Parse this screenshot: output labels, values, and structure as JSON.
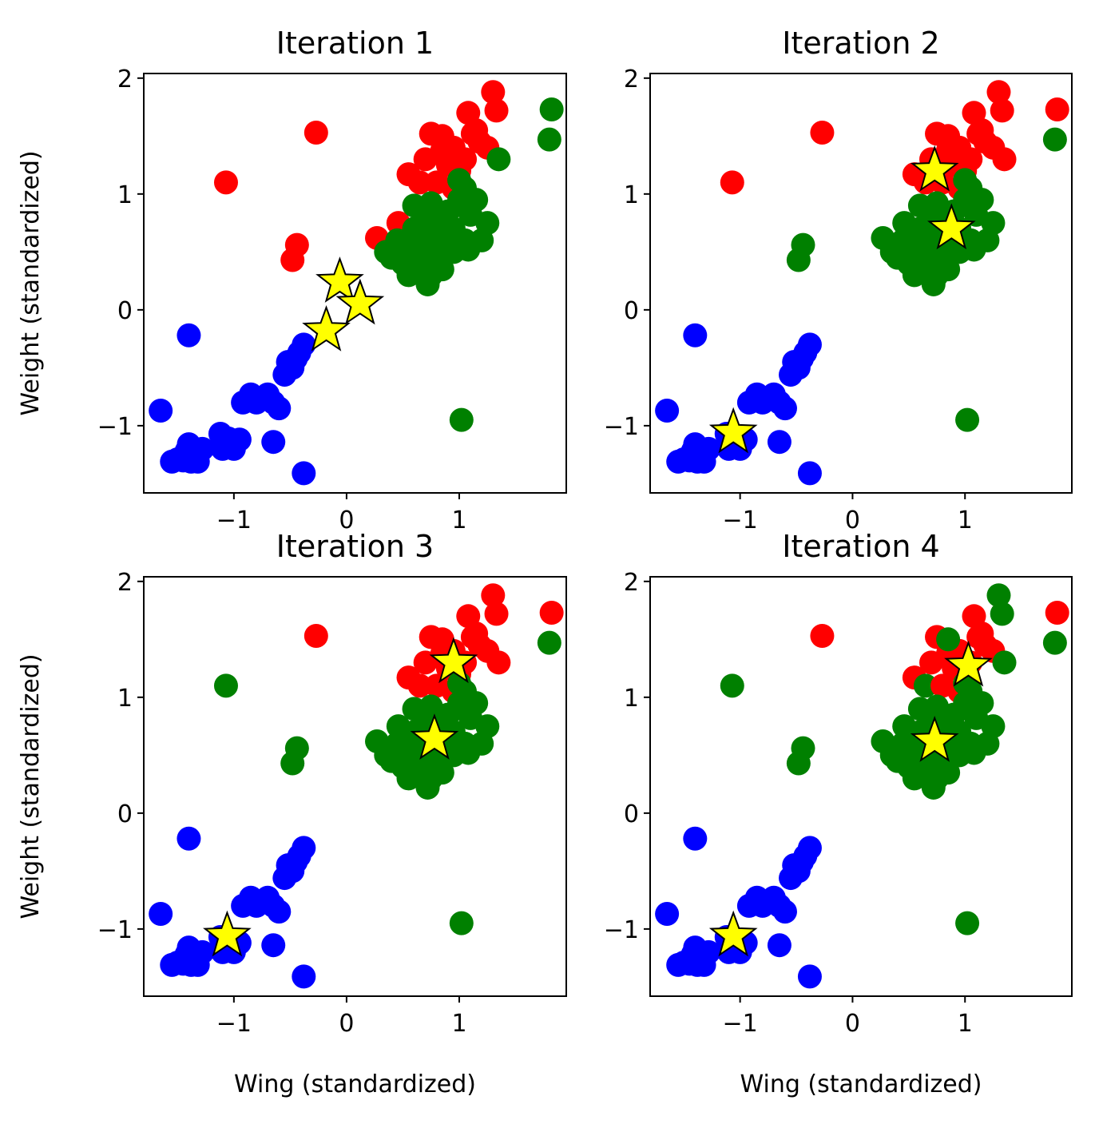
{
  "chart_data": {
    "type": "scatter",
    "grid": false,
    "shared_xlim": [
      -1.8,
      1.95
    ],
    "shared_ylim": [
      -1.58,
      2.04
    ],
    "x_ticks": [
      -1,
      0,
      1
    ],
    "y_ticks": [
      -1,
      0,
      1,
      2
    ],
    "xlabel": "Wing (standardized)",
    "ylabel": "Weight (standardized)",
    "cluster_colors": [
      "#ff0000",
      "#008000",
      "#0000ff"
    ],
    "centroid_color": "#ffff00",
    "points": [
      [
        -1.65,
        -0.87
      ],
      [
        -1.55,
        -1.31
      ],
      [
        -1.5,
        -1.29
      ],
      [
        -1.45,
        -1.3
      ],
      [
        -1.42,
        -1.22
      ],
      [
        -1.4,
        -1.16
      ],
      [
        -1.38,
        -1.31
      ],
      [
        -1.35,
        -1.27
      ],
      [
        -1.32,
        -1.31
      ],
      [
        -1.28,
        -1.2
      ],
      [
        -1.4,
        -0.22
      ],
      [
        -1.12,
        -1.07
      ],
      [
        -1.05,
        -1.11
      ],
      [
        -1.0,
        -1.15
      ],
      [
        -0.95,
        -1.12
      ],
      [
        -1.1,
        -1.2
      ],
      [
        -1.0,
        -1.2
      ],
      [
        -0.92,
        -0.8
      ],
      [
        -0.85,
        -0.73
      ],
      [
        -0.8,
        -0.8
      ],
      [
        -0.75,
        -0.77
      ],
      [
        -0.7,
        -0.73
      ],
      [
        -0.65,
        -0.8
      ],
      [
        -0.6,
        -0.85
      ],
      [
        -0.65,
        -1.14
      ],
      [
        -0.55,
        -0.56
      ],
      [
        -0.52,
        -0.45
      ],
      [
        -0.48,
        -0.5
      ],
      [
        -0.45,
        -0.42
      ],
      [
        -0.42,
        -0.37
      ],
      [
        -0.38,
        -0.3
      ],
      [
        -0.38,
        -1.41
      ],
      [
        -1.07,
        1.1
      ],
      [
        -0.27,
        1.53
      ],
      [
        -0.48,
        0.43
      ],
      [
        -0.44,
        0.56
      ],
      [
        0.27,
        0.62
      ],
      [
        0.46,
        0.75
      ],
      [
        0.55,
        1.17
      ],
      [
        0.7,
        1.3
      ],
      [
        0.75,
        1.52
      ],
      [
        0.85,
        1.38
      ],
      [
        0.9,
        1.25
      ],
      [
        0.95,
        1.4
      ],
      [
        1.0,
        1.2
      ],
      [
        1.05,
        1.3
      ],
      [
        1.08,
        1.7
      ],
      [
        1.12,
        1.52
      ],
      [
        1.18,
        1.45
      ],
      [
        1.25,
        1.4
      ],
      [
        1.3,
        1.88
      ],
      [
        1.33,
        1.72
      ],
      [
        0.65,
        1.1
      ],
      [
        0.8,
        1.1
      ],
      [
        0.95,
        1.05
      ],
      [
        1.15,
        1.55
      ],
      [
        0.85,
        1.5
      ],
      [
        1.35,
        1.3
      ],
      [
        0.35,
        0.5
      ],
      [
        0.4,
        0.45
      ],
      [
        0.45,
        0.6
      ],
      [
        0.5,
        0.4
      ],
      [
        0.55,
        0.55
      ],
      [
        0.6,
        0.5
      ],
      [
        0.6,
        0.7
      ],
      [
        0.65,
        0.35
      ],
      [
        0.65,
        0.6
      ],
      [
        0.7,
        0.8
      ],
      [
        0.7,
        0.45
      ],
      [
        0.72,
        0.22
      ],
      [
        0.75,
        0.65
      ],
      [
        0.75,
        0.92
      ],
      [
        0.8,
        0.5
      ],
      [
        0.8,
        0.75
      ],
      [
        0.85,
        0.6
      ],
      [
        0.85,
        0.35
      ],
      [
        0.9,
        0.85
      ],
      [
        0.95,
        0.7
      ],
      [
        0.95,
        0.5
      ],
      [
        1.0,
        0.95
      ],
      [
        1.05,
        0.6
      ],
      [
        1.05,
        1.05
      ],
      [
        1.08,
        0.52
      ],
      [
        1.1,
        0.82
      ],
      [
        1.15,
        0.95
      ],
      [
        1.2,
        0.6
      ],
      [
        1.25,
        0.75
      ],
      [
        0.6,
        0.9
      ],
      [
        0.75,
        0.3
      ],
      [
        0.55,
        0.3
      ],
      [
        1.0,
        1.12
      ],
      [
        1.02,
        -0.95
      ],
      [
        1.8,
        1.47
      ],
      [
        1.82,
        1.73
      ]
    ],
    "panels": [
      {
        "title": "Iteration 1",
        "assignments": [
          2,
          2,
          2,
          2,
          2,
          2,
          2,
          2,
          2,
          2,
          2,
          2,
          2,
          2,
          2,
          2,
          2,
          2,
          2,
          2,
          2,
          2,
          2,
          2,
          2,
          2,
          2,
          2,
          2,
          2,
          2,
          2,
          0,
          0,
          0,
          0,
          0,
          0,
          0,
          0,
          0,
          0,
          0,
          0,
          0,
          0,
          0,
          0,
          0,
          0,
          0,
          0,
          0,
          0,
          0,
          0,
          0,
          1,
          1,
          1,
          1,
          1,
          1,
          1,
          1,
          1,
          1,
          1,
          1,
          1,
          1,
          1,
          1,
          1,
          1,
          1,
          1,
          1,
          1,
          1,
          1,
          1,
          1,
          1,
          1,
          1,
          1,
          1,
          1,
          1,
          1,
          1,
          1,
          1,
          1
        ],
        "centroids": [
          [
            -0.06,
            0.24
          ],
          [
            0.12,
            0.05
          ],
          [
            -0.18,
            -0.18
          ]
        ]
      },
      {
        "title": "Iteration 2",
        "assignments": [
          2,
          2,
          2,
          2,
          2,
          2,
          2,
          2,
          2,
          2,
          2,
          2,
          2,
          2,
          2,
          2,
          2,
          2,
          2,
          2,
          2,
          2,
          2,
          2,
          2,
          2,
          2,
          2,
          2,
          2,
          2,
          2,
          0,
          0,
          1,
          1,
          1,
          1,
          0,
          0,
          0,
          0,
          0,
          0,
          0,
          0,
          0,
          0,
          0,
          0,
          0,
          0,
          0,
          0,
          0,
          0,
          0,
          0,
          1,
          1,
          1,
          1,
          1,
          1,
          1,
          1,
          1,
          1,
          1,
          1,
          1,
          1,
          1,
          1,
          1,
          1,
          1,
          1,
          1,
          1,
          1,
          1,
          1,
          1,
          1,
          1,
          1,
          1,
          1,
          1,
          1,
          1,
          1,
          0,
          0
        ],
        "centroids": [
          [
            0.73,
            1.2
          ],
          [
            0.88,
            0.7
          ],
          [
            -1.06,
            -1.06
          ]
        ]
      },
      {
        "title": "Iteration 3",
        "assignments": [
          2,
          2,
          2,
          2,
          2,
          2,
          2,
          2,
          2,
          2,
          2,
          2,
          2,
          2,
          2,
          2,
          2,
          2,
          2,
          2,
          2,
          2,
          2,
          2,
          2,
          2,
          2,
          2,
          2,
          2,
          2,
          2,
          1,
          0,
          1,
          1,
          1,
          1,
          0,
          0,
          0,
          0,
          0,
          0,
          0,
          0,
          0,
          0,
          0,
          0,
          0,
          0,
          0,
          0,
          0,
          0,
          0,
          0,
          1,
          1,
          1,
          1,
          1,
          1,
          1,
          1,
          1,
          1,
          1,
          1,
          1,
          1,
          1,
          1,
          1,
          1,
          1,
          1,
          1,
          1,
          1,
          1,
          1,
          1,
          1,
          1,
          1,
          1,
          1,
          1,
          1,
          1,
          1,
          0,
          0
        ],
        "centroids": [
          [
            0.95,
            1.3
          ],
          [
            0.78,
            0.64
          ],
          [
            -1.06,
            -1.06
          ]
        ]
      },
      {
        "title": "Iteration 4",
        "assignments": [
          2,
          2,
          2,
          2,
          2,
          2,
          2,
          2,
          2,
          2,
          2,
          2,
          2,
          2,
          2,
          2,
          2,
          2,
          2,
          2,
          2,
          2,
          2,
          2,
          2,
          2,
          2,
          2,
          2,
          2,
          2,
          2,
          1,
          0,
          1,
          1,
          1,
          1,
          0,
          0,
          0,
          0,
          0,
          0,
          0,
          0,
          0,
          0,
          0,
          0,
          1,
          1,
          1,
          0,
          0,
          0,
          1,
          1,
          1,
          1,
          1,
          1,
          1,
          1,
          1,
          1,
          1,
          1,
          1,
          1,
          1,
          1,
          1,
          1,
          1,
          1,
          1,
          1,
          1,
          1,
          1,
          1,
          1,
          1,
          1,
          1,
          1,
          1,
          1,
          1,
          1,
          1,
          1,
          0,
          0
        ],
        "centroids": [
          [
            1.03,
            1.27
          ],
          [
            0.73,
            0.62
          ],
          [
            -1.06,
            -1.06
          ]
        ]
      }
    ]
  }
}
